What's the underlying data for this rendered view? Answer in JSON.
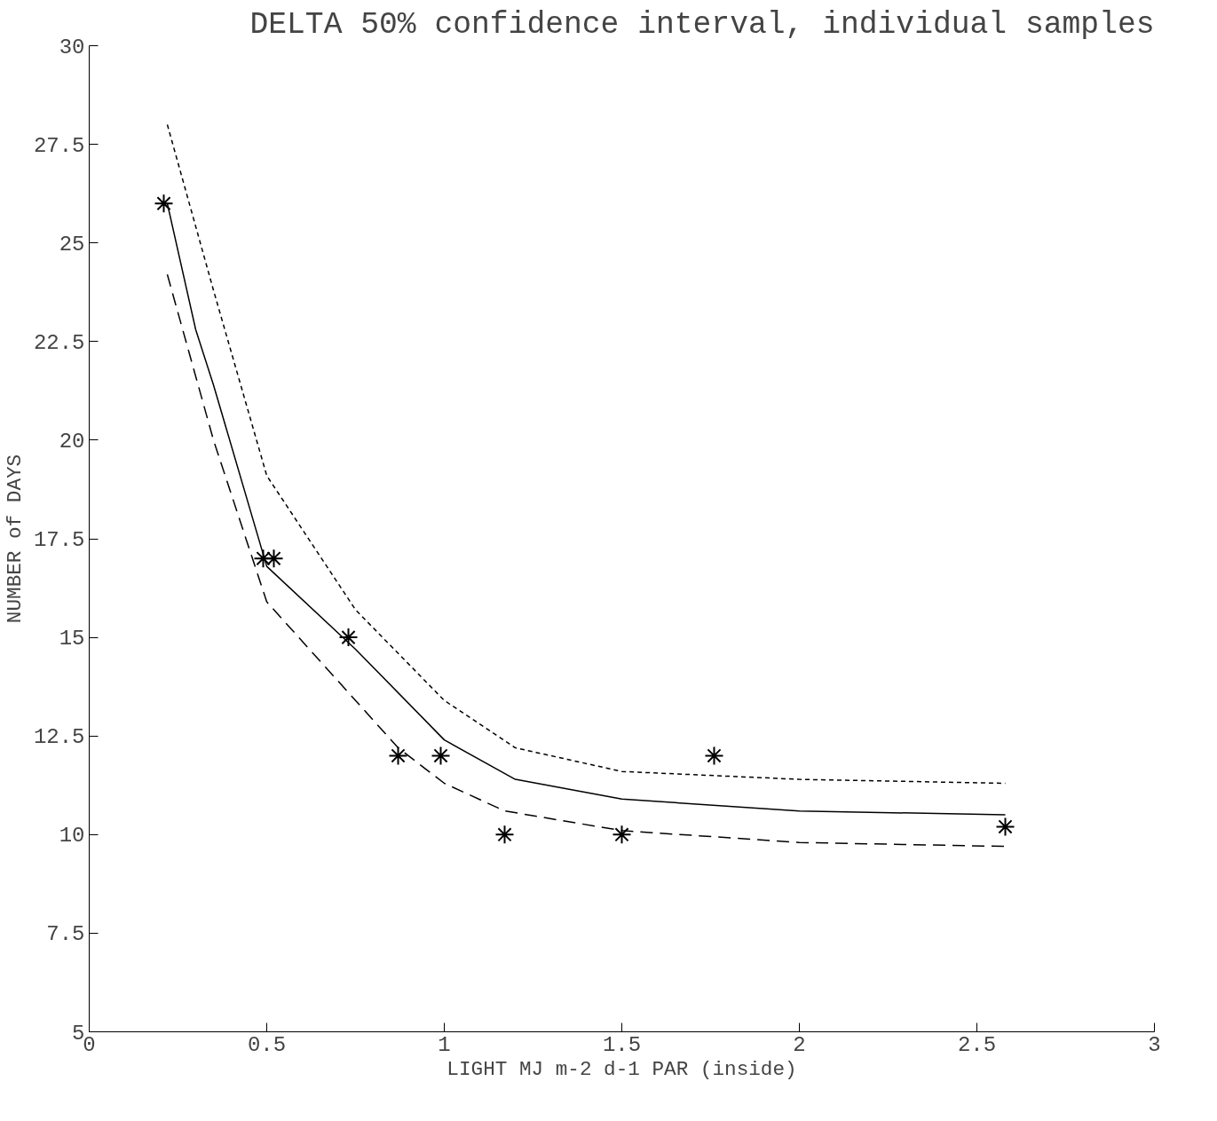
{
  "chart_data": {
    "type": "scatter",
    "title": "DELTA 50% confidence interval, individual samples",
    "xlabel": "LIGHT MJ m-2 d-1 PAR (inside)",
    "ylabel": "NUMBER of DAYS",
    "xlim": [
      0,
      3
    ],
    "ylim": [
      5,
      30
    ],
    "xticks": [
      0,
      0.5,
      1,
      1.5,
      2,
      2.5,
      3
    ],
    "yticks": [
      5,
      7.5,
      10,
      12.5,
      15,
      17.5,
      20,
      22.5,
      25,
      27.5,
      30
    ],
    "grid": false,
    "series": [
      {
        "color": "#000000",
        "marker": "cross",
        "x": [
          0.21,
          0.49,
          0.52,
          0.73,
          0.87,
          0.99,
          1.17,
          1.5,
          1.76,
          2.58
        ],
        "values": [
          26,
          17,
          17,
          15,
          12,
          12,
          10,
          10,
          12,
          10.2
        ]
      },
      {
        "type": "line",
        "color": "#000000",
        "line_style": "solid",
        "x": [
          0.22,
          0.3,
          0.35,
          0.5,
          0.75,
          1.0,
          1.2,
          1.5,
          2.0,
          2.58
        ],
        "values": [
          26,
          22.8,
          21.4,
          16.8,
          14.7,
          12.4,
          11.4,
          10.9,
          10.6,
          10.5
        ]
      },
      {
        "type": "line",
        "color": "#000000",
        "line_style": "dotted",
        "x": [
          0.22,
          0.35,
          0.5,
          0.75,
          1.0,
          1.2,
          1.5,
          2.0,
          2.58
        ],
        "values": [
          28,
          23.8,
          19.1,
          15.7,
          13.4,
          12.2,
          11.6,
          11.4,
          11.3
        ]
      },
      {
        "type": "line",
        "color": "#000000",
        "line_style": "dashed",
        "x": [
          0.22,
          0.35,
          0.5,
          0.75,
          0.87,
          1.0,
          1.17,
          1.5,
          2.0,
          2.58
        ],
        "values": [
          24.2,
          20,
          15.9,
          13.4,
          12.2,
          11.3,
          10.6,
          10.1,
          9.8,
          9.7
        ]
      }
    ]
  }
}
